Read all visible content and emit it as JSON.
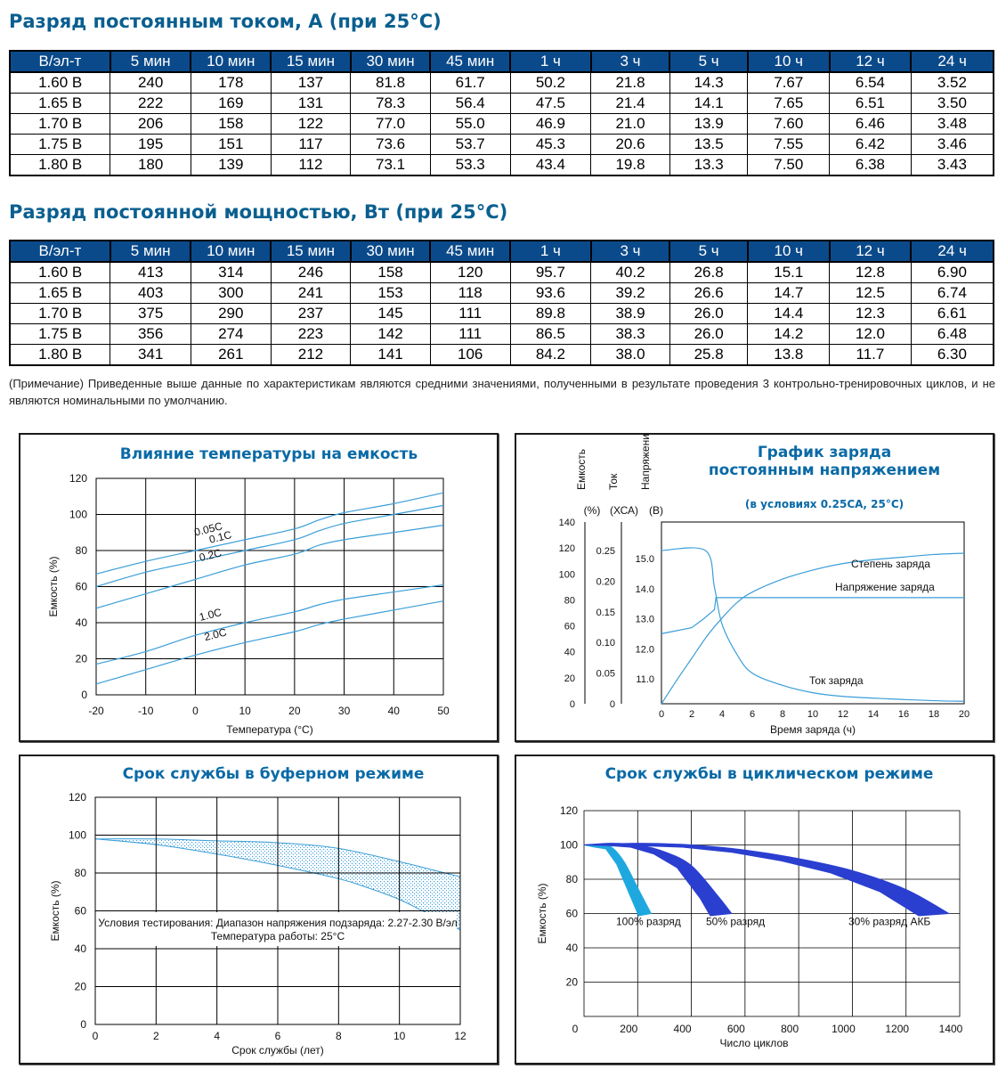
{
  "current_table": {
    "title": "Разряд постоянным током, А (при 25°С)",
    "headers": [
      "В/эл-т",
      "5 мин",
      "10 мин",
      "15 мин",
      "30 мин",
      "45 мин",
      "1 ч",
      "3 ч",
      "5 ч",
      "10 ч",
      "12 ч",
      "24 ч"
    ],
    "rows": [
      [
        "1.60 В",
        "240",
        "178",
        "137",
        "81.8",
        "61.7",
        "50.2",
        "21.8",
        "14.3",
        "7.67",
        "6.54",
        "3.52"
      ],
      [
        "1.65 В",
        "222",
        "169",
        "131",
        "78.3",
        "56.4",
        "47.5",
        "21.4",
        "14.1",
        "7.65",
        "6.51",
        "3.50"
      ],
      [
        "1.70 В",
        "206",
        "158",
        "122",
        "77.0",
        "55.0",
        "46.9",
        "21.0",
        "13.9",
        "7.60",
        "6.46",
        "3.48"
      ],
      [
        "1.75 В",
        "195",
        "151",
        "117",
        "73.6",
        "53.7",
        "45.3",
        "20.6",
        "13.5",
        "7.55",
        "6.42",
        "3.46"
      ],
      [
        "1.80 В",
        "180",
        "139",
        "112",
        "73.1",
        "53.3",
        "43.4",
        "19.8",
        "13.3",
        "7.50",
        "6.38",
        "3.43"
      ]
    ]
  },
  "power_table": {
    "title": "Разряд постоянной мощностью, Вт (при 25°С)",
    "headers": [
      "В/эл-т",
      "5 мин",
      "10 мин",
      "15 мин",
      "30 мин",
      "45 мин",
      "1 ч",
      "3 ч",
      "5 ч",
      "10 ч",
      "12 ч",
      "24 ч"
    ],
    "rows": [
      [
        "1.60 В",
        "413",
        "314",
        "246",
        "158",
        "120",
        "95.7",
        "40.2",
        "26.8",
        "15.1",
        "12.8",
        "6.90"
      ],
      [
        "1.65 В",
        "403",
        "300",
        "241",
        "153",
        "118",
        "93.6",
        "39.2",
        "26.6",
        "14.7",
        "12.5",
        "6.74"
      ],
      [
        "1.70 В",
        "375",
        "290",
        "237",
        "145",
        "111",
        "89.8",
        "38.9",
        "26.0",
        "14.4",
        "12.3",
        "6.61"
      ],
      [
        "1.75 В",
        "356",
        "274",
        "223",
        "142",
        "111",
        "86.5",
        "38.3",
        "26.0",
        "14.2",
        "12.0",
        "6.48"
      ],
      [
        "1.80 В",
        "341",
        "261",
        "212",
        "141",
        "106",
        "84.2",
        "38.0",
        "25.8",
        "13.8",
        "11.7",
        "6.30"
      ]
    ]
  },
  "note": "(Примечание) Приведенные выше данные по характеристикам являются средними значениями, полученными в результате проведения 3 контрольно-тренировочных циклов, и не являются номинальными по умолчанию.",
  "colors": {
    "header_bg": "#0b4a8a",
    "title": "#0a5f8f",
    "curve": "#3a9ed8",
    "band": "#3a9ed8",
    "cycle_dark": "#2a3fd0",
    "cycle_light": "#1fa8e0"
  },
  "chart_data": [
    {
      "type": "line",
      "title": "Влияние температуры на емкость",
      "xlabel": "Температура (°С)",
      "ylabel": "Емкость (%)",
      "xlim": [
        -20,
        50
      ],
      "ylim": [
        0,
        120
      ],
      "x_ticks": [
        "-20",
        "-10",
        "0",
        "10",
        "20",
        "30",
        "40",
        "50"
      ],
      "y_ticks": [
        "0",
        "20",
        "40",
        "60",
        "80",
        "100",
        "120"
      ],
      "grid": true,
      "series": [
        {
          "name": "0.05C",
          "x": [
            -20,
            -10,
            0,
            10,
            20,
            25,
            30,
            40,
            50
          ],
          "y": [
            67,
            74,
            80,
            86,
            92,
            97,
            101,
            106,
            112
          ]
        },
        {
          "name": "0.1С",
          "x": [
            -20,
            -10,
            0,
            10,
            20,
            25,
            30,
            40,
            50
          ],
          "y": [
            60,
            68,
            74,
            80,
            86,
            91,
            95,
            100,
            105
          ]
        },
        {
          "name": "0.2С",
          "x": [
            -20,
            -10,
            0,
            10,
            20,
            25,
            30,
            40,
            50
          ],
          "y": [
            48,
            56,
            64,
            72,
            78,
            83,
            86,
            90,
            94
          ]
        },
        {
          "name": "1.0С",
          "x": [
            -20,
            -10,
            0,
            10,
            20,
            25,
            30,
            40,
            50
          ],
          "y": [
            17,
            24,
            33,
            40,
            46,
            50,
            53,
            57,
            61
          ]
        },
        {
          "name": "2.0С",
          "x": [
            -20,
            -10,
            0,
            10,
            20,
            25,
            30,
            40,
            50
          ],
          "y": [
            6,
            14,
            22,
            29,
            35,
            39,
            42,
            47,
            52
          ]
        }
      ]
    },
    {
      "type": "line",
      "title": "График заряда постоянным напряжением",
      "subtitle": "(в условиях 0.25СА, 25°С)",
      "xlabel": "Время заряда (ч)",
      "axis_headers": [
        "Емкость (%)",
        "Ток (ХСА)",
        "Напряжение (В)"
      ],
      "x_ticks": [
        "0",
        "2",
        "4",
        "6",
        "8",
        "10",
        "12",
        "14",
        "16",
        "18",
        "20"
      ],
      "capacity_ticks": [
        "0",
        "20",
        "40",
        "60",
        "80",
        "100",
        "120",
        "140"
      ],
      "current_ticks": [
        "0",
        "0.05",
        "0.10",
        "0.15",
        "0.20",
        "0.25"
      ],
      "voltage_ticks": [
        "11.0",
        "12.0",
        "13.0",
        "14.0",
        "15.0"
      ],
      "xlim": [
        0,
        20
      ],
      "series": [
        {
          "name": "Степень заряда",
          "axis": "capacity",
          "x": [
            0,
            1,
            2,
            3,
            4,
            5,
            6,
            8,
            10,
            12,
            14,
            16,
            18,
            20
          ],
          "y": [
            0,
            18,
            35,
            52,
            66,
            78,
            86,
            96,
            103,
            108,
            111,
            113,
            115,
            116
          ]
        },
        {
          "name": "Напряжение заряда",
          "axis": "voltage",
          "x": [
            0,
            1,
            2,
            2.8,
            3.5,
            3.6,
            5,
            10,
            15,
            20
          ],
          "y": [
            12.5,
            12.6,
            12.7,
            13.0,
            13.3,
            13.7,
            13.7,
            13.7,
            13.7,
            13.7
          ]
        },
        {
          "name": "Ток заряда",
          "axis": "current",
          "x": [
            0,
            2.9,
            3.5,
            4,
            5,
            6,
            8,
            10,
            12,
            15,
            18,
            20
          ],
          "y": [
            0.25,
            0.25,
            0.19,
            0.13,
            0.08,
            0.05,
            0.03,
            0.018,
            0.012,
            0.008,
            0.005,
            0.004
          ]
        }
      ]
    },
    {
      "type": "area",
      "title": "Срок службы в буферном режиме",
      "xlabel": "Срок службы (лет)",
      "ylabel": "Емкость (%)",
      "xlim": [
        0,
        12
      ],
      "ylim": [
        0,
        120
      ],
      "x_ticks": [
        "0",
        "2",
        "4",
        "6",
        "8",
        "10",
        "12"
      ],
      "y_ticks": [
        "0",
        "20",
        "40",
        "60",
        "80",
        "100",
        "120"
      ],
      "annotation": [
        "Условия тестирования: Диапазон напряжения подзаряда: 2.27-2.30 В/эл",
        "Температура работы: 25°С"
      ],
      "series": [
        {
          "name": "upper",
          "x": [
            0,
            2,
            4,
            6,
            8,
            10,
            11,
            12
          ],
          "y": [
            98,
            98,
            97,
            96,
            93,
            86,
            82,
            78
          ]
        },
        {
          "name": "lower",
          "x": [
            0,
            2,
            4,
            6,
            8,
            9,
            10,
            11,
            12
          ],
          "y": [
            98,
            95,
            90,
            84,
            77,
            72,
            66,
            58,
            50
          ]
        }
      ]
    },
    {
      "type": "area",
      "title": "Срок службы в циклическом режиме",
      "xlabel": "Число циклов",
      "ylabel": "Емкость (%)",
      "xlim": [
        0,
        1400
      ],
      "ylim": [
        0,
        120
      ],
      "x_ticks": [
        "0",
        "200",
        "400",
        "600",
        "800",
        "1000",
        "1200",
        "1400"
      ],
      "y_ticks": [
        "20",
        "40",
        "60",
        "80",
        "100",
        "120"
      ],
      "series": [
        {
          "name": "100% разряд",
          "x": [
            0,
            50,
            100,
            150,
            200,
            250
          ],
          "y": [
            100,
            100,
            99,
            90,
            75,
            60
          ]
        },
        {
          "name": "50% разряд",
          "x": [
            0,
            100,
            200,
            300,
            400,
            500,
            550
          ],
          "y": [
            100,
            101,
            100,
            96,
            88,
            70,
            60
          ]
        },
        {
          "name": "30% разряд АКБ",
          "x": [
            0,
            200,
            400,
            600,
            800,
            1000,
            1200,
            1360
          ],
          "y": [
            100,
            101,
            100,
            97,
            92,
            85,
            74,
            60
          ]
        }
      ]
    }
  ]
}
